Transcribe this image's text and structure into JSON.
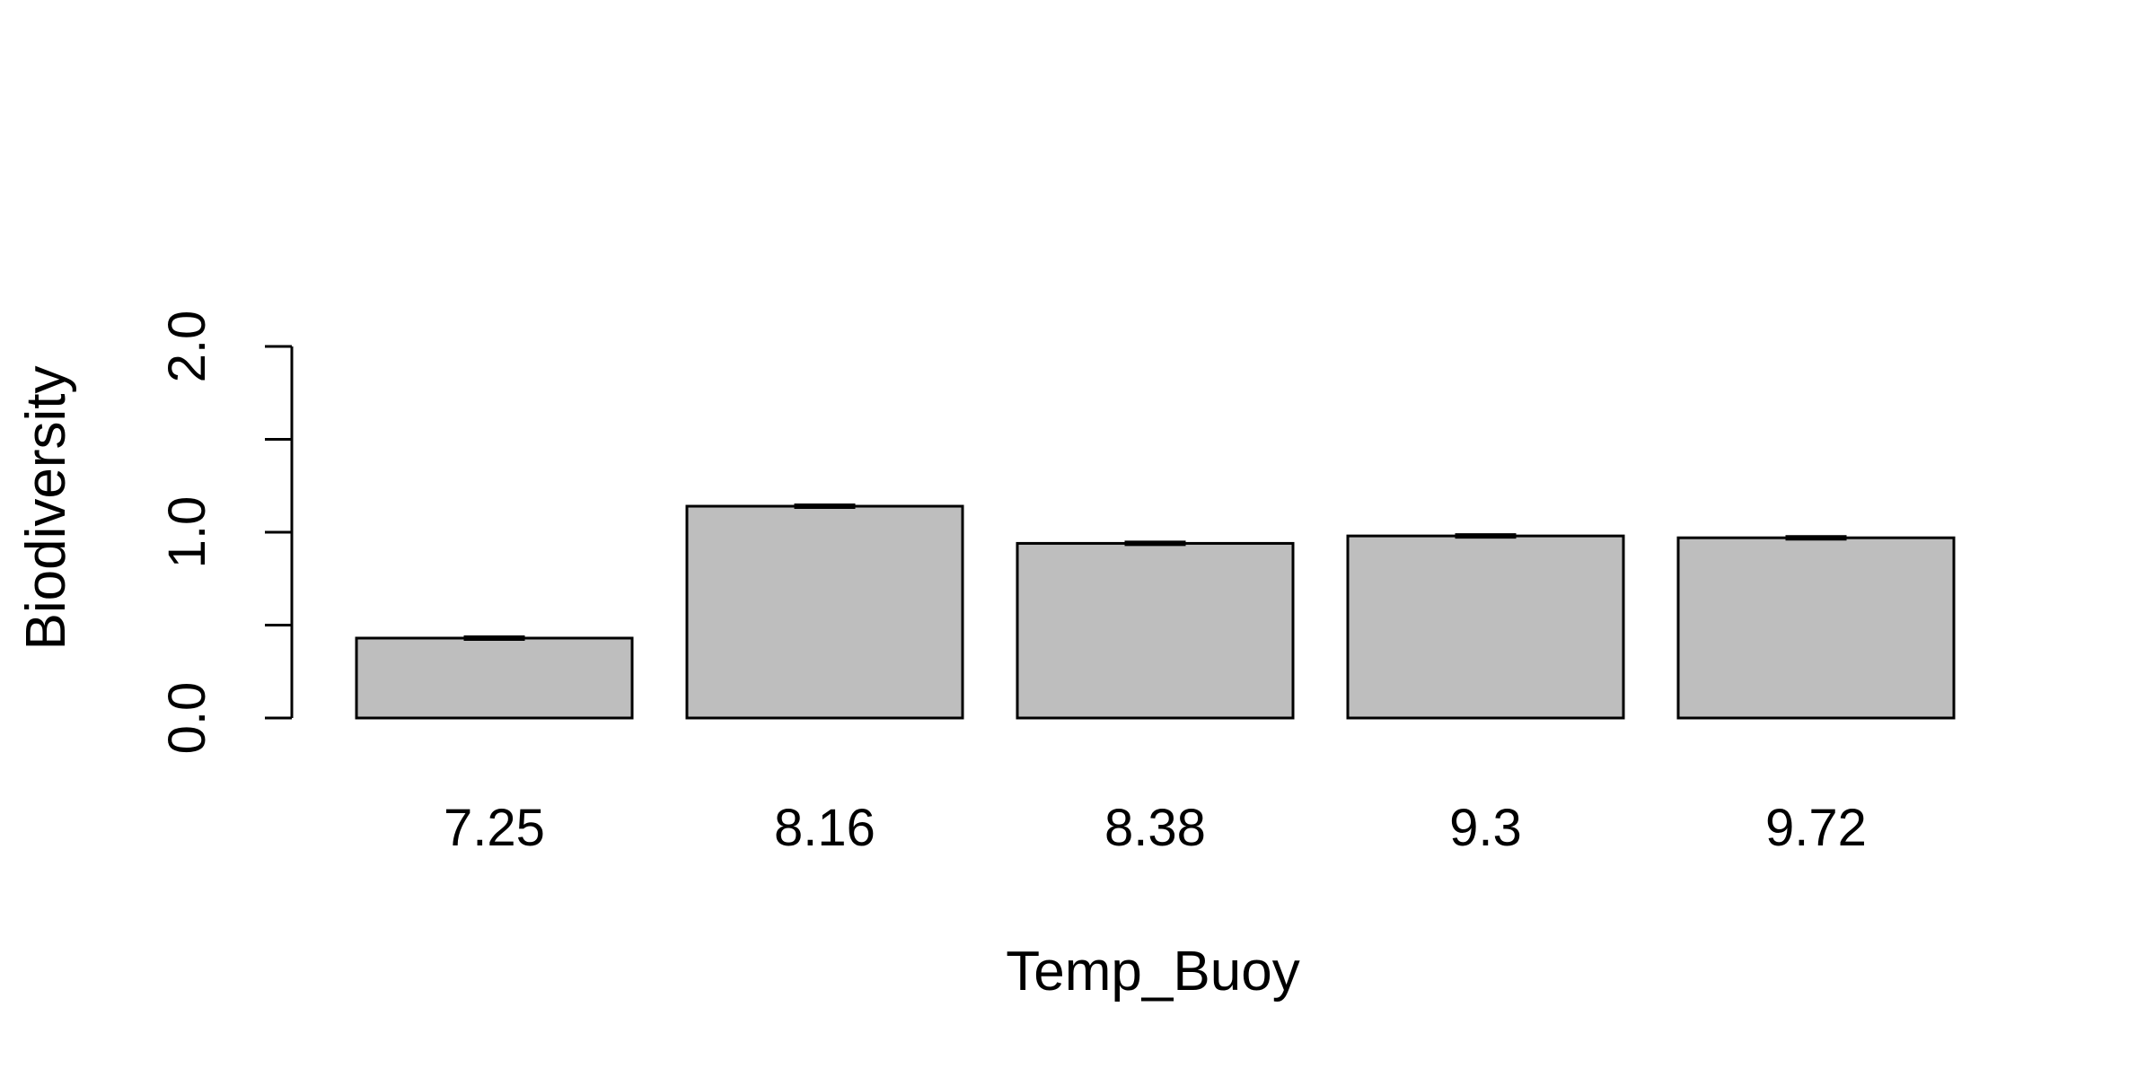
{
  "chart_data": {
    "type": "bar",
    "title": "",
    "xlabel": "Temp_Buoy",
    "ylabel": "Biodiversity",
    "categories": [
      "7.25",
      "8.16",
      "8.38",
      "9.3",
      "9.72"
    ],
    "values": [
      0.43,
      1.14,
      0.94,
      0.98,
      0.97
    ],
    "errors": [
      0.01,
      0.01,
      0.01,
      0.01,
      0.01
    ],
    "ylim": [
      0,
      2
    ],
    "yticks": [
      0,
      0.5,
      1,
      1.5,
      2
    ],
    "ytick_labels": [
      "0.0",
      "",
      "1.0",
      "",
      "2.0"
    ],
    "grid": false,
    "bar_color": "#bebebe",
    "edge_color": "#000000"
  }
}
